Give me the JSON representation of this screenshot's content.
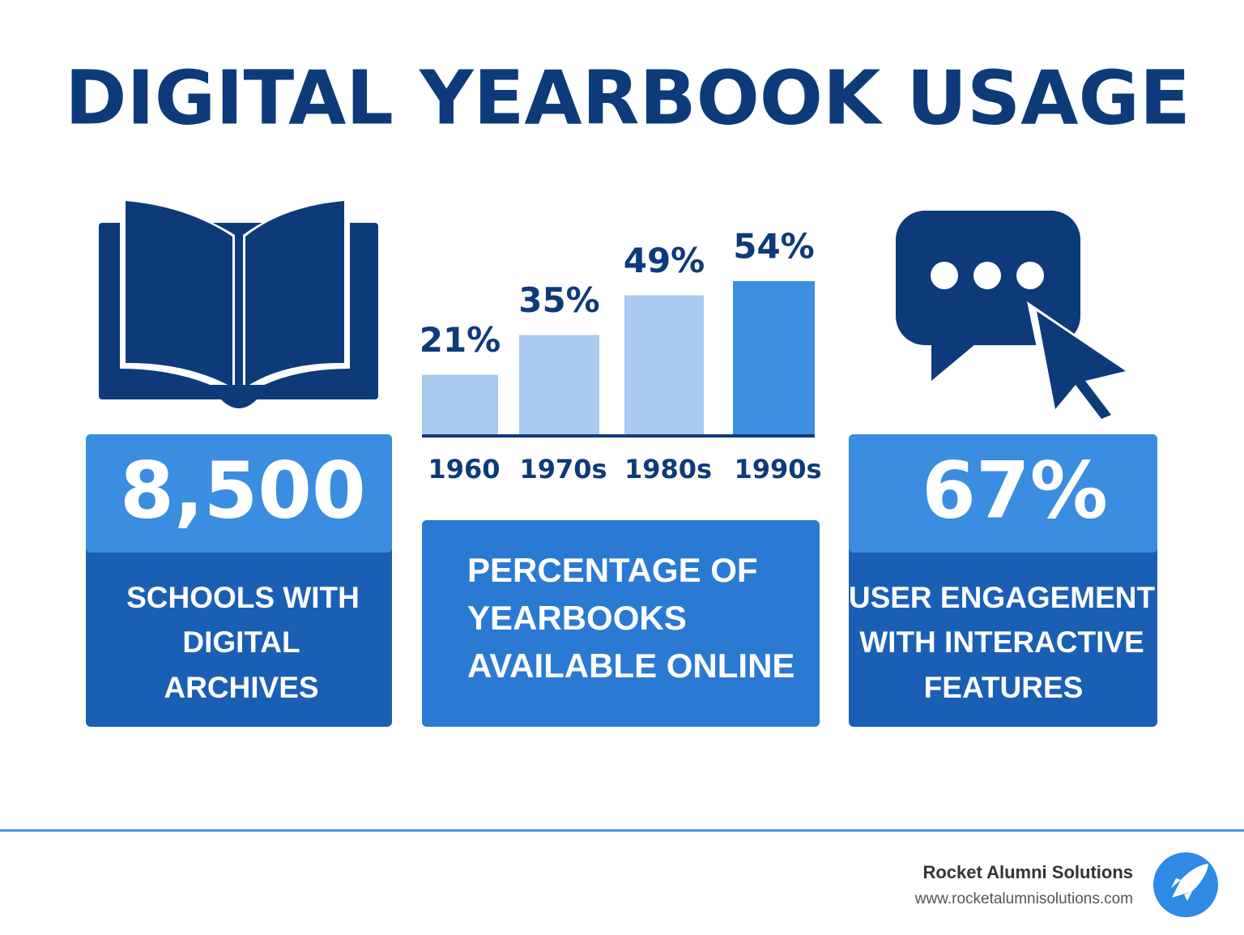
{
  "title": "DIGITAL YEARBOOK USAGE",
  "stats": [
    {
      "value": "8,500",
      "label": [
        "SCHOOLS WITH",
        "DIGITAL",
        "ARCHIVES"
      ]
    },
    {
      "value": "67%",
      "label": [
        "USER ENGAGEMENT",
        "WITH INTERACTIVE",
        "FEATURES"
      ]
    }
  ],
  "chart_data": {
    "type": "bar",
    "categories": [
      "1960",
      "1970s",
      "1980s",
      "1990s"
    ],
    "values": [
      21,
      35,
      49,
      54
    ],
    "value_labels": [
      "21%",
      "35%",
      "49%",
      "54%"
    ],
    "colors": [
      "#a9cbee",
      "#a9cbee",
      "#a9cbee",
      "#3d8fe0"
    ],
    "caption": [
      "PERCENTAGE OF",
      "YEARBOOKS",
      "AVAILABLE ONLINE"
    ]
  },
  "footer": {
    "company": "Rocket Alumni Solutions",
    "url": "www.rocketalumnisolutions.com"
  }
}
